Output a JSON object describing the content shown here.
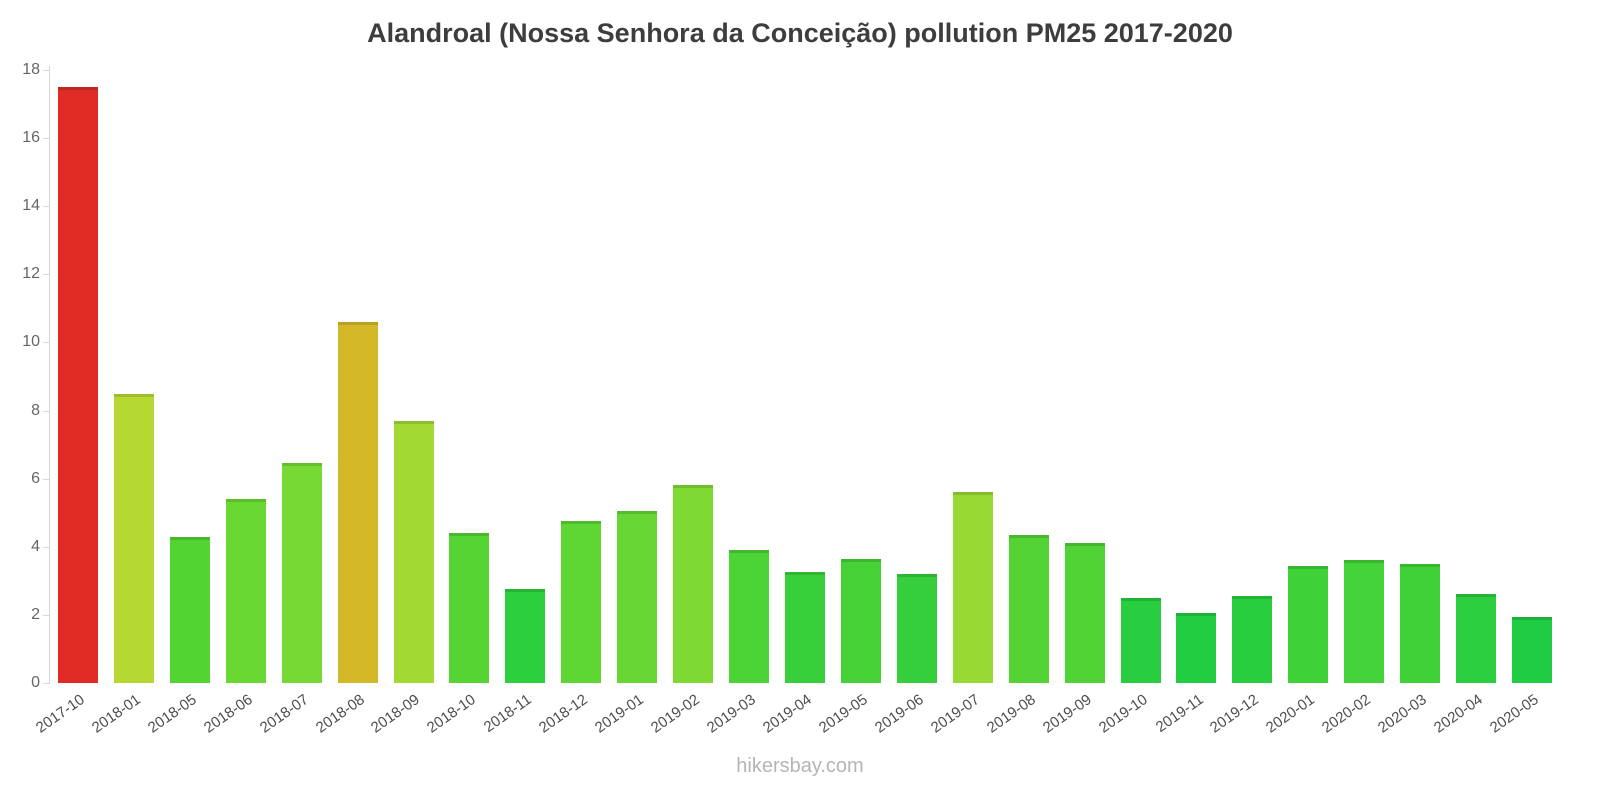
{
  "chart_data": {
    "type": "bar",
    "title": "Alandroal (Nossa Senhora da Conceição) pollution PM25 2017-2020",
    "xlabel": "",
    "ylabel": "",
    "ylim": [
      0,
      18
    ],
    "yticks": [
      0,
      2,
      4,
      6,
      8,
      10,
      12,
      14,
      16,
      18
    ],
    "grid": false,
    "legend": "none",
    "categories": [
      "2017-10",
      "2018-01",
      "2018-05",
      "2018-06",
      "2018-07",
      "2018-08",
      "2018-09",
      "2018-10",
      "2018-11",
      "2018-12",
      "2019-01",
      "2019-02",
      "2019-03",
      "2019-04",
      "2019-05",
      "2019-06",
      "2019-07",
      "2019-08",
      "2019-09",
      "2019-10",
      "2019-11",
      "2019-12",
      "2020-01",
      "2020-02",
      "2020-03",
      "2020-04",
      "2020-05"
    ],
    "values": [
      17.5,
      8.5,
      4.3,
      5.4,
      6.45,
      10.6,
      7.7,
      4.4,
      2.75,
      4.75,
      5.05,
      5.8,
      3.9,
      3.25,
      3.65,
      3.2,
      5.6,
      4.35,
      4.1,
      2.5,
      2.05,
      2.55,
      3.45,
      3.6,
      3.5,
      2.6,
      1.95
    ],
    "colors": [
      "#df2b23",
      "#b5d932",
      "#52d433",
      "#69d833",
      "#77d933",
      "#d5b828",
      "#a3d933",
      "#55d434",
      "#2ccf3d",
      "#5ed633",
      "#66d733",
      "#7ed933",
      "#4cd336",
      "#38d03a",
      "#45d237",
      "#35cf3b",
      "#98da33",
      "#54d434",
      "#4fd335",
      "#28ce3f",
      "#22cd42",
      "#29ce3f",
      "#3ed138",
      "#43d237",
      "#40d138",
      "#2ace3e",
      "#20cc43"
    ]
  },
  "watermark": "hikersbay.com"
}
